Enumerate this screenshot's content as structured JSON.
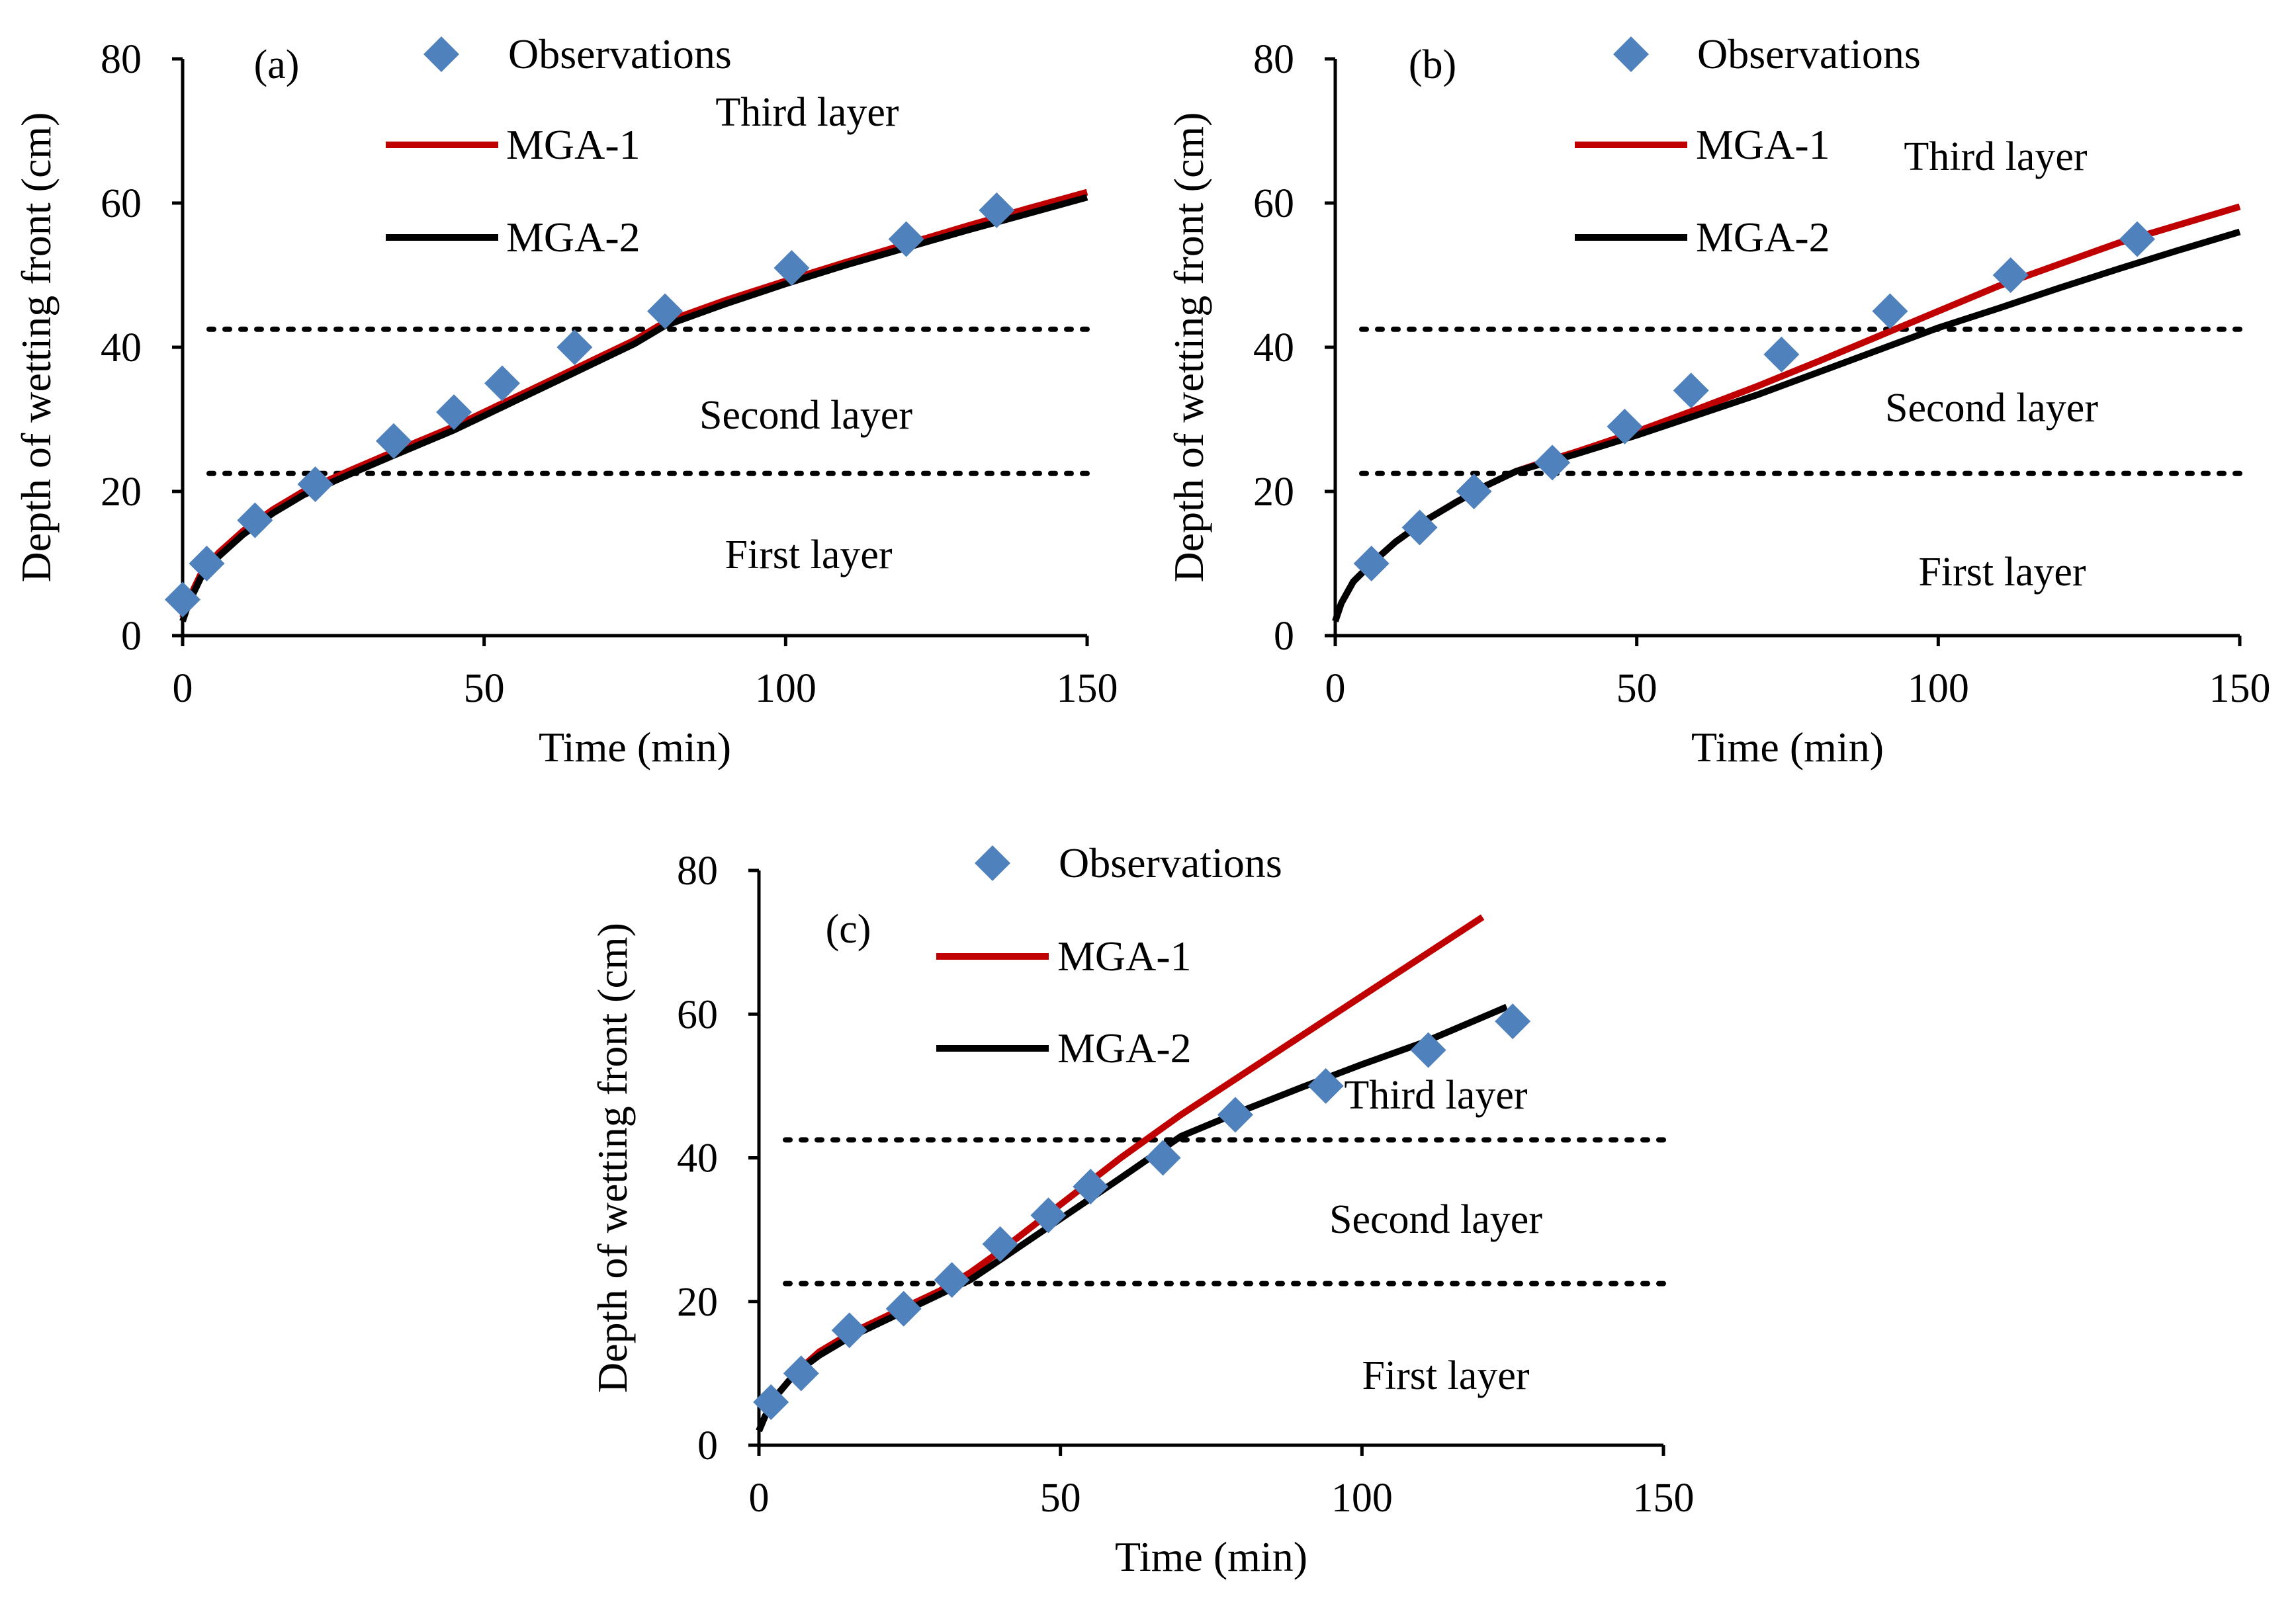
{
  "chart_data": [
    {
      "type": "line",
      "panel_label": "(a)",
      "xlabel": "Time (min)",
      "ylabel": "Depth of wetting front (cm)",
      "xlim": [
        0,
        150
      ],
      "ylim": [
        0,
        80
      ],
      "xticks": [
        "0",
        "50",
        "100",
        "150"
      ],
      "yticks": [
        "0",
        "20",
        "40",
        "60",
        "80"
      ],
      "layer_boundaries": [
        22.5,
        42.5
      ],
      "layer_labels": [
        "Third layer",
        "Second layer",
        "First layer"
      ],
      "legend": [
        "Observations",
        "MGA-1",
        "MGA-2"
      ],
      "colors": {
        "observations": "#4F81BD",
        "mga1": "#C00000",
        "mga2": "#000000"
      },
      "series": [
        {
          "name": "Observations",
          "kind": "scatter",
          "x": [
            0,
            4,
            12,
            22,
            35,
            45,
            53,
            65,
            80,
            101,
            120,
            135
          ],
          "y": [
            5,
            10,
            16,
            21,
            27,
            31,
            35,
            40,
            45,
            51,
            55,
            59
          ]
        },
        {
          "name": "MGA-1",
          "kind": "line",
          "x": [
            0,
            1,
            3,
            6,
            10,
            15,
            20,
            28,
            35,
            45,
            55,
            65,
            75,
            80,
            90,
            100,
            110,
            120,
            130,
            140,
            150
          ],
          "y": [
            2.5,
            5,
            8.5,
            11.5,
            14.5,
            17.5,
            20,
            23,
            25.5,
            29,
            33,
            37,
            41,
            43.5,
            46.5,
            49.2,
            51.8,
            54.3,
            56.8,
            59.2,
            61.5
          ]
        },
        {
          "name": "MGA-2",
          "kind": "line",
          "x": [
            0,
            1,
            3,
            6,
            10,
            15,
            20,
            28,
            35,
            45,
            55,
            65,
            75,
            80,
            90,
            100,
            110,
            120,
            130,
            140,
            150
          ],
          "y": [
            2,
            4.5,
            8,
            11,
            14,
            17,
            19.5,
            22.5,
            25,
            28.5,
            32.5,
            36.5,
            40.5,
            43,
            46,
            48.8,
            51.4,
            53.8,
            56.2,
            58.5,
            60.8
          ]
        }
      ]
    },
    {
      "type": "line",
      "panel_label": "(b)",
      "xlabel": "Time (min)",
      "ylabel": "Depth of wetting front (cm)",
      "xlim": [
        0,
        150
      ],
      "ylim": [
        0,
        80
      ],
      "xticks": [
        "0",
        "50",
        "100",
        "150"
      ],
      "yticks": [
        "0",
        "20",
        "40",
        "60",
        "80"
      ],
      "layer_boundaries": [
        22.5,
        42.5
      ],
      "layer_labels": [
        "Third layer",
        "Second layer",
        "First layer"
      ],
      "legend": [
        "Observations",
        "MGA-1",
        "MGA-2"
      ],
      "colors": {
        "observations": "#4F81BD",
        "mga1": "#C00000",
        "mga2": "#000000"
      },
      "series": [
        {
          "name": "Observations",
          "kind": "scatter",
          "x": [
            6,
            14,
            23,
            36,
            48,
            59,
            74,
            92,
            112,
            133
          ],
          "y": [
            10,
            15,
            20,
            24,
            29,
            34,
            39,
            45,
            50,
            55
          ]
        },
        {
          "name": "MGA-1",
          "kind": "line",
          "x": [
            0,
            1,
            3,
            6,
            10,
            15,
            20,
            25,
            30,
            35,
            40,
            50,
            60,
            70,
            80,
            90,
            100,
            110,
            120,
            130,
            140,
            150
          ],
          "y": [
            2,
            4.5,
            7.5,
            10,
            13,
            16,
            18.5,
            20.8,
            22.8,
            24.2,
            25.5,
            28.3,
            31.4,
            34.6,
            38,
            41.5,
            45,
            48.5,
            51.5,
            54.5,
            57,
            59.5
          ]
        },
        {
          "name": "MGA-2",
          "kind": "line",
          "x": [
            0,
            1,
            3,
            6,
            10,
            15,
            20,
            25,
            30,
            35,
            40,
            50,
            60,
            70,
            80,
            90,
            100,
            110,
            120,
            130,
            140,
            150
          ],
          "y": [
            2,
            4.5,
            7.5,
            10,
            13,
            16,
            18.5,
            20.8,
            22.8,
            24,
            25.2,
            27.8,
            30.6,
            33.4,
            36.5,
            39.6,
            42.7,
            45.4,
            48.2,
            50.9,
            53.5,
            56
          ]
        }
      ]
    },
    {
      "type": "line",
      "panel_label": "(c)",
      "xlabel": "Time (min)",
      "ylabel": "Depth of wetting front (cm)",
      "xlim": [
        0,
        150
      ],
      "ylim": [
        0,
        80
      ],
      "xticks": [
        "0",
        "50",
        "100",
        "150"
      ],
      "yticks": [
        "0",
        "20",
        "40",
        "60",
        "80"
      ],
      "layer_boundaries": [
        22.5,
        42.5
      ],
      "layer_labels": [
        "Third layer",
        "Second layer",
        "First layer"
      ],
      "legend": [
        "Observations",
        "MGA-1",
        "MGA-2"
      ],
      "colors": {
        "observations": "#4F81BD",
        "mga1": "#C00000",
        "mga2": "#000000"
      },
      "series": [
        {
          "name": "Observations",
          "kind": "scatter",
          "x": [
            2,
            7,
            15,
            24,
            32,
            40,
            48,
            55,
            67,
            79,
            94,
            111,
            125
          ],
          "y": [
            6,
            10,
            16,
            19,
            23,
            28,
            32,
            36,
            40,
            46,
            50,
            55,
            59
          ]
        },
        {
          "name": "MGA-1",
          "kind": "line",
          "x": [
            0,
            1,
            3,
            6,
            10,
            15,
            20,
            25,
            30,
            35,
            40,
            50,
            60,
            70,
            80,
            90,
            100,
            110,
            120
          ],
          "y": [
            2,
            4,
            7,
            10,
            13,
            15.5,
            17.5,
            19.5,
            21.5,
            24,
            27,
            33.5,
            40,
            46,
            51.5,
            57,
            62.5,
            68,
            73.5
          ]
        },
        {
          "name": "MGA-2",
          "kind": "line",
          "x": [
            0,
            1,
            3,
            6,
            10,
            15,
            20,
            25,
            30,
            35,
            40,
            50,
            60,
            70,
            80,
            90,
            100,
            110,
            124
          ],
          "y": [
            2,
            4,
            7,
            10,
            12.5,
            15,
            17,
            19,
            21,
            23,
            25.8,
            31.5,
            37.2,
            43,
            46.5,
            49.8,
            53,
            56,
            61
          ]
        }
      ]
    }
  ]
}
